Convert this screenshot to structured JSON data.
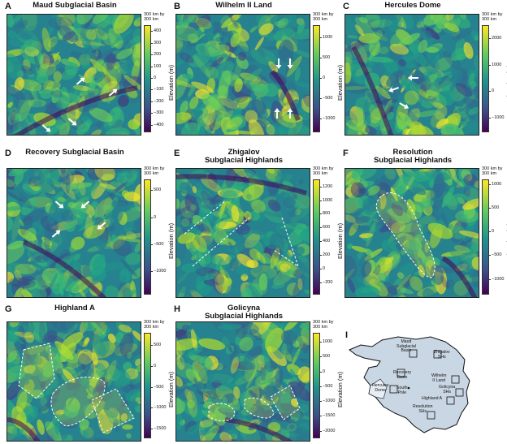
{
  "figure": {
    "unit": "Elevation (m)",
    "scale": "300 km by\n300 km"
  },
  "panels": [
    {
      "letter": "A",
      "title": "Maud Subglacial Basin",
      "ticks": [
        "400",
        "300",
        "200",
        "100",
        "0",
        "−100",
        "−200",
        "−300",
        "−400"
      ],
      "colorbar_range": [
        -450,
        450
      ]
    },
    {
      "letter": "B",
      "title": "Wilhelm II Land",
      "ticks": [
        "1000",
        "500",
        "0",
        "−500",
        "−1000"
      ],
      "colorbar_range": [
        -1300,
        1300
      ]
    },
    {
      "letter": "C",
      "title": "Hercules Dome",
      "ticks": [
        "2000",
        "1000",
        "0",
        "−1000"
      ],
      "colorbar_range": [
        -1500,
        2500
      ]
    },
    {
      "letter": "D",
      "title": "Recovery Subglacial Basin",
      "ticks": [
        "500",
        "0",
        "−500",
        "−1000"
      ],
      "colorbar_range": [
        -1400,
        700
      ]
    },
    {
      "letter": "E",
      "title": "Zhigalov\nSubglacial Highlands",
      "ticks": [
        "1200",
        "1000",
        "800",
        "600",
        "400",
        "200",
        "0",
        "−200"
      ],
      "colorbar_range": [
        -350,
        1300
      ]
    },
    {
      "letter": "F",
      "title": "Resolution\nSubglacial Highlands",
      "ticks": [
        "1000",
        "500",
        "0",
        "−500",
        "−1000"
      ],
      "colorbar_range": [
        -1300,
        1100
      ]
    },
    {
      "letter": "G",
      "title": "Highland A",
      "ticks": [
        "500",
        "0",
        "−500",
        "−1000",
        "−1500"
      ],
      "colorbar_range": [
        -1700,
        800
      ]
    },
    {
      "letter": "H",
      "title": "Golicyna\nSubglacial Highlands",
      "ticks": [
        "1000",
        "500",
        "0",
        "−500",
        "−1000",
        "−1500",
        "−2000"
      ],
      "colorbar_range": [
        -2200,
        1300
      ]
    }
  ],
  "inset": {
    "letter": "I",
    "labels": [
      "Maud\nSubglacial\nBasin",
      "Zhigalov\nSHs",
      "Recovery\nBasin",
      "Wilhelm\nII Land",
      "Hercules\nDome",
      "South\nPole",
      "Golicyna\nSHs",
      "Highland A",
      "Resolution\nSHs"
    ]
  },
  "colors": {
    "low": "#440154",
    "mid": "#21918c",
    "high": "#fde725",
    "outline": "#ffffff"
  }
}
